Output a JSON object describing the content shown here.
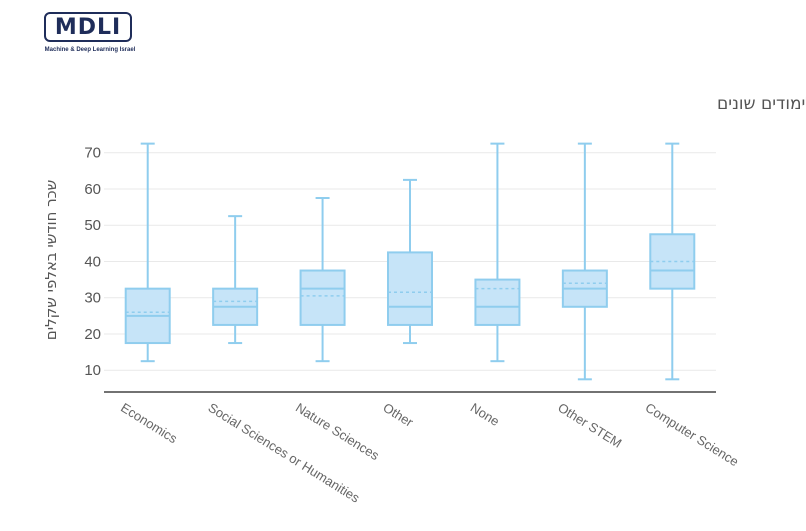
{
  "logo": {
    "text": "MDLI",
    "subtitle": "Machine & Deep Learning Israel"
  },
  "chart_data": {
    "type": "box",
    "title": "התפלגות השכר עבור תחומי לימודים שונים",
    "xlabel": "",
    "ylabel": "שכר חודשי באלפי שקלים",
    "ylim": [
      4,
      73.5
    ],
    "yticks": [
      10,
      20,
      30,
      40,
      50,
      60,
      70
    ],
    "grid": true,
    "colors": {
      "box_fill": "#c6e4f8",
      "box_stroke": "#8fcdee",
      "grid": "#e9e9e9",
      "axis": "#444444"
    },
    "categories": [
      "Economics",
      "Social Sciences or Humanities",
      "Nature Sciences",
      "Other",
      "None",
      "Other STEM",
      "Computer Science"
    ],
    "boxes": [
      {
        "min": 12.5,
        "q1": 17.5,
        "median": 25,
        "mean": 26,
        "q3": 32.5,
        "max": 72.5
      },
      {
        "min": 17.5,
        "q1": 22.5,
        "median": 27.5,
        "mean": 29,
        "q3": 32.5,
        "max": 52.5
      },
      {
        "min": 12.5,
        "q1": 22.5,
        "median": 32.5,
        "mean": 30.5,
        "q3": 37.5,
        "max": 57.5
      },
      {
        "min": 17.5,
        "q1": 22.5,
        "median": 27.5,
        "mean": 31.5,
        "q3": 42.5,
        "max": 62.5
      },
      {
        "min": 12.5,
        "q1": 22.5,
        "median": 27.5,
        "mean": 32.5,
        "q3": 35,
        "max": 72.5
      },
      {
        "min": 7.5,
        "q1": 27.5,
        "median": 32.5,
        "mean": 34,
        "q3": 37.5,
        "max": 72.5
      },
      {
        "min": 7.5,
        "q1": 32.5,
        "median": 37.5,
        "mean": 40,
        "q3": 47.5,
        "max": 72.5
      }
    ]
  }
}
